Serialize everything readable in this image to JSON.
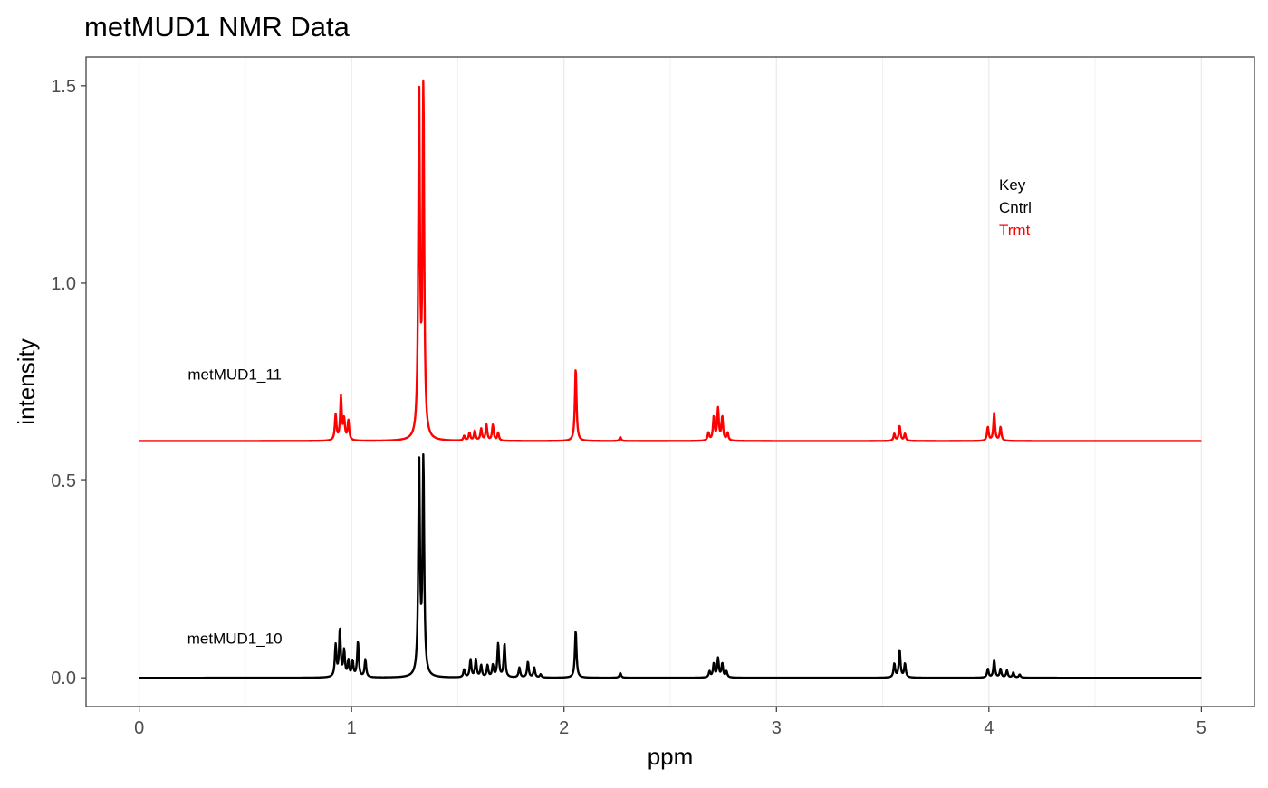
{
  "chart_data": {
    "type": "line",
    "title": "metMUD1 NMR Data",
    "xlabel": "ppm",
    "ylabel": "intensity",
    "xlim": [
      -0.25,
      5.25
    ],
    "ylim": [
      -0.073,
      1.573
    ],
    "x_ticks": [
      0,
      1,
      2,
      3,
      4,
      5
    ],
    "x_tick_labels": [
      "0",
      "1",
      "2",
      "3",
      "4",
      "5"
    ],
    "y_ticks": [
      0.0,
      0.5,
      1.0,
      1.5
    ],
    "y_tick_labels": [
      "0.0",
      "0.5",
      "1.0",
      "1.5"
    ],
    "x_minor_gridlines": [
      0.5,
      1.5,
      2.5,
      3.5,
      4.5
    ],
    "grid": true,
    "key": {
      "title": "Key",
      "entries": [
        {
          "label": "Cntrl",
          "color": "#000000"
        },
        {
          "label": "Trmt",
          "color": "#ff0000"
        }
      ]
    },
    "series": [
      {
        "name": "metMUD1_10",
        "group": "Cntrl",
        "color": "#000000",
        "label_at": {
          "x": 0.45,
          "y": 0.1
        },
        "baseline": 0.0,
        "peaks": [
          {
            "ppm": 0.925,
            "height": 0.08
          },
          {
            "ppm": 0.945,
            "height": 0.12
          },
          {
            "ppm": 0.965,
            "height": 0.065
          },
          {
            "ppm": 0.985,
            "height": 0.04
          },
          {
            "ppm": 1.005,
            "height": 0.04
          },
          {
            "ppm": 1.03,
            "height": 0.09
          },
          {
            "ppm": 1.065,
            "height": 0.045
          },
          {
            "ppm": 1.318,
            "height": 0.545
          },
          {
            "ppm": 1.338,
            "height": 0.545
          },
          {
            "ppm": 1.53,
            "height": 0.02
          },
          {
            "ppm": 1.56,
            "height": 0.045
          },
          {
            "ppm": 1.585,
            "height": 0.045
          },
          {
            "ppm": 1.61,
            "height": 0.03
          },
          {
            "ppm": 1.64,
            "height": 0.03
          },
          {
            "ppm": 1.665,
            "height": 0.03
          },
          {
            "ppm": 1.69,
            "height": 0.085
          },
          {
            "ppm": 1.72,
            "height": 0.085
          },
          {
            "ppm": 1.79,
            "height": 0.025
          },
          {
            "ppm": 1.83,
            "height": 0.04
          },
          {
            "ppm": 1.86,
            "height": 0.025
          },
          {
            "ppm": 1.89,
            "height": 0.008
          },
          {
            "ppm": 2.055,
            "height": 0.12
          },
          {
            "ppm": 2.265,
            "height": 0.012
          },
          {
            "ppm": 2.685,
            "height": 0.015
          },
          {
            "ppm": 2.705,
            "height": 0.035
          },
          {
            "ppm": 2.725,
            "height": 0.048
          },
          {
            "ppm": 2.745,
            "height": 0.035
          },
          {
            "ppm": 2.765,
            "height": 0.015
          },
          {
            "ppm": 3.555,
            "height": 0.035
          },
          {
            "ppm": 3.58,
            "height": 0.07
          },
          {
            "ppm": 3.605,
            "height": 0.035
          },
          {
            "ppm": 3.995,
            "height": 0.022
          },
          {
            "ppm": 4.025,
            "height": 0.045
          },
          {
            "ppm": 4.055,
            "height": 0.022
          },
          {
            "ppm": 4.085,
            "height": 0.018
          },
          {
            "ppm": 4.115,
            "height": 0.013
          },
          {
            "ppm": 4.145,
            "height": 0.008
          }
        ]
      },
      {
        "name": "metMUD1_11",
        "group": "Trmt",
        "color": "#ff0000",
        "label_at": {
          "x": 0.45,
          "y": 0.77
        },
        "baseline": 0.6,
        "peaks": [
          {
            "ppm": 0.925,
            "height": 0.065
          },
          {
            "ppm": 0.95,
            "height": 0.11
          },
          {
            "ppm": 0.965,
            "height": 0.05
          },
          {
            "ppm": 0.985,
            "height": 0.05
          },
          {
            "ppm": 1.318,
            "height": 0.875
          },
          {
            "ppm": 1.338,
            "height": 0.88
          },
          {
            "ppm": 1.53,
            "height": 0.012
          },
          {
            "ppm": 1.555,
            "height": 0.02
          },
          {
            "ppm": 1.58,
            "height": 0.025
          },
          {
            "ppm": 1.61,
            "height": 0.03
          },
          {
            "ppm": 1.635,
            "height": 0.04
          },
          {
            "ppm": 1.665,
            "height": 0.04
          },
          {
            "ppm": 1.69,
            "height": 0.02
          },
          {
            "ppm": 2.055,
            "height": 0.185
          },
          {
            "ppm": 2.265,
            "height": 0.01
          },
          {
            "ppm": 2.68,
            "height": 0.02
          },
          {
            "ppm": 2.705,
            "height": 0.06
          },
          {
            "ppm": 2.725,
            "height": 0.08
          },
          {
            "ppm": 2.745,
            "height": 0.06
          },
          {
            "ppm": 2.77,
            "height": 0.02
          },
          {
            "ppm": 3.555,
            "height": 0.018
          },
          {
            "ppm": 3.58,
            "height": 0.038
          },
          {
            "ppm": 3.605,
            "height": 0.018
          },
          {
            "ppm": 3.995,
            "height": 0.035
          },
          {
            "ppm": 4.025,
            "height": 0.07
          },
          {
            "ppm": 4.055,
            "height": 0.035
          }
        ]
      }
    ]
  }
}
